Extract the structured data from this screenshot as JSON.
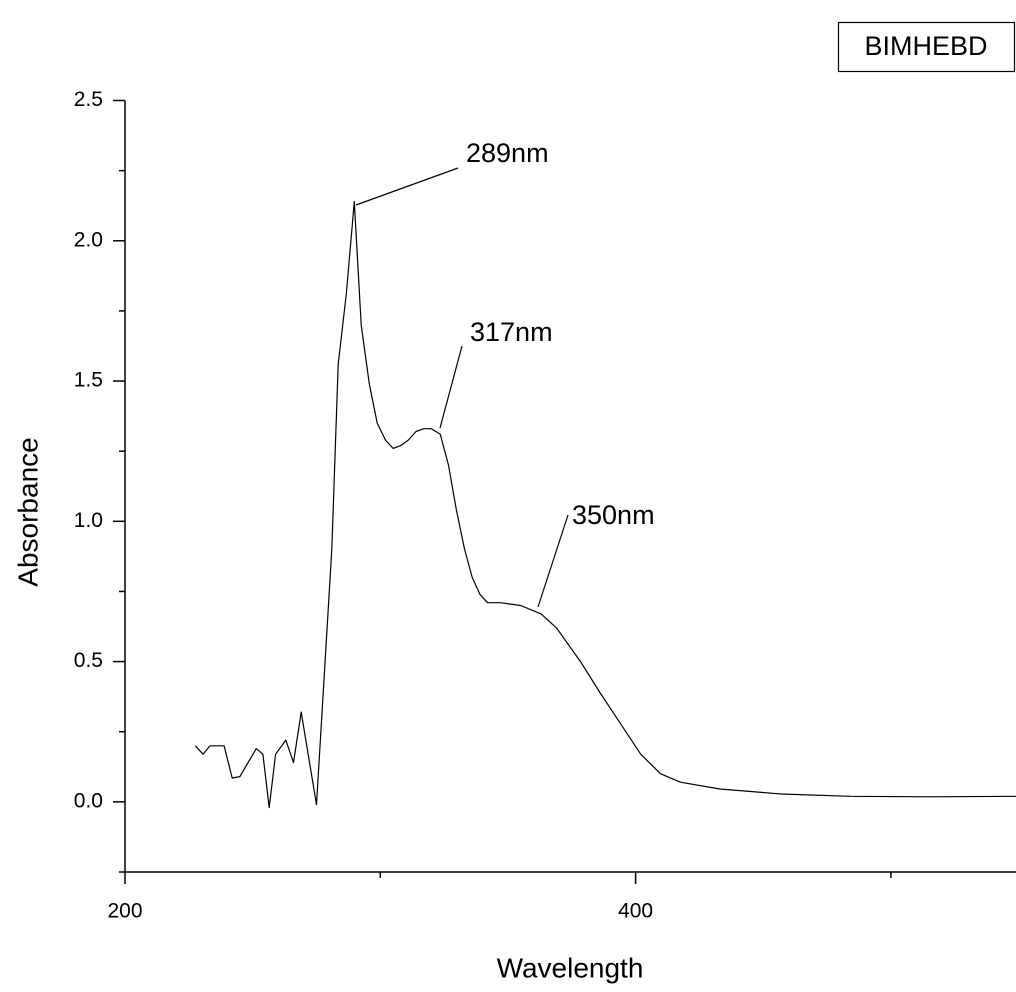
{
  "chart_data": {
    "type": "line",
    "x_label": "Wavelength",
    "y_label": "Absorbance",
    "xlim": [
      200,
      549
    ],
    "ylim": [
      -0.25,
      2.5
    ],
    "xticks": [
      200,
      400
    ],
    "xminorticks": [
      300,
      500
    ],
    "yticks": [
      {
        "value": 0,
        "label": "0.0"
      },
      0.5,
      {
        "value": 1,
        "label": "1.0"
      },
      1.5,
      {
        "value": 2,
        "label": "2.0"
      },
      2.5
    ],
    "yminorticks": [
      -0.25,
      0.25,
      0.75,
      1.25,
      1.75,
      2.25
    ],
    "legend": "top-right",
    "series": [
      {
        "name": "BIMHEBD",
        "color": "#000000",
        "x": [
          227.5,
          230.6,
          233.3,
          236,
          238.8,
          242,
          245,
          251.4,
          254,
          256.5,
          259,
          263,
          266,
          269,
          275,
          281,
          283.5,
          286.7,
          289.8,
          292.5,
          295.7,
          298.8,
          302,
          305,
          308,
          311,
          314,
          317,
          320,
          323.5,
          326.7,
          329.8,
          333,
          336,
          339,
          342,
          347,
          355,
          363,
          369,
          378.4,
          386,
          394,
          402,
          409.8,
          417.6,
          433,
          457,
          484,
          515.7,
          549
        ],
        "values": [
          0.2,
          0.17,
          0.2,
          0.2,
          0.2,
          0.085,
          0.09,
          0.19,
          0.17,
          -0.02,
          0.17,
          0.22,
          0.14,
          0.32,
          -0.01,
          0.9,
          1.56,
          1.81,
          2.14,
          1.7,
          1.49,
          1.35,
          1.29,
          1.26,
          1.27,
          1.29,
          1.32,
          1.33,
          1.33,
          1.31,
          1.2,
          1.04,
          0.9,
          0.8,
          0.74,
          0.71,
          0.71,
          0.7,
          0.67,
          0.62,
          0.5,
          0.39,
          0.28,
          0.17,
          0.1,
          0.07,
          0.046,
          0.028,
          0.02,
          0.018,
          0.02
        ]
      }
    ],
    "annotations": [
      "289nm",
      "317nm",
      "350nm"
    ]
  }
}
